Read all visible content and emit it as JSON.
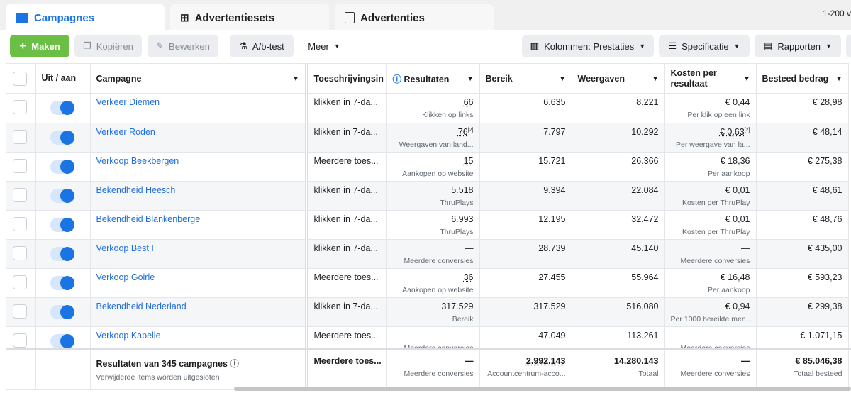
{
  "tabs": [
    {
      "label": "Campagnes",
      "icon": "folder-icon"
    },
    {
      "label": "Advertentiesets",
      "icon": "grid-icon"
    },
    {
      "label": "Advertenties",
      "icon": "window-icon"
    }
  ],
  "range": "1-200 v",
  "toolbar": {
    "create": "Maken",
    "copy": "Kopiëren",
    "edit": "Bewerken",
    "abtest": "A/b-test",
    "more": "Meer",
    "columns": "Kolommen: Prestaties",
    "breakdown": "Specificatie",
    "reports": "Rapporten"
  },
  "headers": {
    "onoff": "Uit / aan",
    "campaign": "Campagne",
    "attribution": "Toeschrijvingsin",
    "results": "Resultaten",
    "reach": "Bereik",
    "impressions": "Weergaven",
    "cpr": "Kosten per resultaat",
    "spent": "Besteed bedrag"
  },
  "rows": [
    {
      "name": "Verkeer Diemen",
      "attr": "klikken in 7-da...",
      "res": "66",
      "res_sub": "Klikken op links",
      "reach": "6.635",
      "imp": "8.221",
      "cpr": "€ 0,44",
      "cpr_sub": "Per klik op een link",
      "spent": "€ 28,98"
    },
    {
      "name": "Verkeer Roden",
      "attr": "klikken in 7-da...",
      "res": "76",
      "res_sup": "[2]",
      "res_sub": "Weergaven van land...",
      "reach": "7.797",
      "imp": "10.292",
      "cpr": "€ 0,63",
      "cpr_sup": "[2]",
      "cpr_sub": "Per weergave van la...",
      "spent": "€ 48,14"
    },
    {
      "name": "Verkoop Beekbergen",
      "attr": "Meerdere toes...",
      "res": "15",
      "res_sub": "Aankopen op website",
      "reach": "15.721",
      "imp": "26.366",
      "cpr": "€ 18,36",
      "cpr_sub": "Per aankoop",
      "spent": "€ 275,38"
    },
    {
      "name": "Bekendheid Heesch",
      "attr": "klikken in 7-da...",
      "res": "5.518",
      "res_sub": "ThruPlays",
      "reach": "9.394",
      "imp": "22.084",
      "cpr": "€ 0,01",
      "cpr_sub": "Kosten per ThruPlay",
      "spent": "€ 48,61"
    },
    {
      "name": "Bekendheid Blankenberge",
      "attr": "klikken in 7-da...",
      "res": "6.993",
      "res_sub": "ThruPlays",
      "reach": "12.195",
      "imp": "32.472",
      "cpr": "€ 0,01",
      "cpr_sub": "Kosten per ThruPlay",
      "spent": "€ 48,76"
    },
    {
      "name": "Verkoop Best I",
      "attr": "klikken in 7-da...",
      "res": "—",
      "res_sub": "Meerdere conversies",
      "reach": "28.739",
      "imp": "45.140",
      "cpr": "—",
      "cpr_sub": "Meerdere conversies",
      "spent": "€ 435,00"
    },
    {
      "name": "Verkoop Goirle",
      "attr": "Meerdere toes...",
      "res": "36",
      "res_sub": "Aankopen op website",
      "reach": "27.455",
      "imp": "55.964",
      "cpr": "€ 16,48",
      "cpr_sub": "Per aankoop",
      "spent": "€ 593,23"
    },
    {
      "name": "Bekendheid Nederland",
      "attr": "klikken in 7-da...",
      "res": "317.529",
      "res_sub": "Bereik",
      "reach": "317.529",
      "imp": "516.080",
      "cpr": "€ 0,94",
      "cpr_sub": "Per 1000 bereikte men...",
      "spent": "€ 299,38"
    },
    {
      "name": "Verkoop Kapelle",
      "attr": "Meerdere toes...",
      "res": "—",
      "res_sub": "Meerdere conversies",
      "reach": "47.049",
      "imp": "113.261",
      "cpr": "—",
      "cpr_sub": "Meerdere conversies",
      "spent": "€ 1.071,15"
    }
  ],
  "totals": {
    "label": "Resultaten van 345 campagnes",
    "note": "Verwijderde items worden uitgesloten",
    "attr": "Meerdere toes...",
    "res": "—",
    "res_sub": "Meerdere conversies",
    "reach": "2.992.143",
    "reach_sub": "Accountcentrum-acco...",
    "imp": "14.280.143",
    "imp_sub": "Totaal",
    "cpr": "—",
    "cpr_sub": "Meerdere conversies",
    "spent": "€ 85.046,38",
    "spent_sub": "Totaal besteed"
  }
}
